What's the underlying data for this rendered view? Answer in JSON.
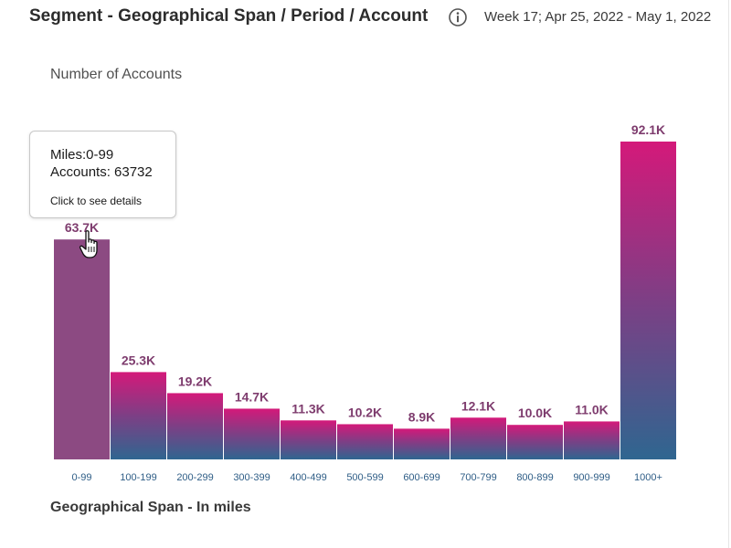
{
  "header": {
    "title": "Segment - Geographical Span / Period / Account",
    "period": "Week 17; Apr 25, 2022 - May 1, 2022",
    "info_icon": "info-icon"
  },
  "tooltip": {
    "miles_line": "Miles:0-99",
    "accounts_line": "Accounts: 63732",
    "hint": "Click to see details"
  },
  "chart_data": {
    "type": "bar",
    "ylabel": "Number of Accounts",
    "xlabel": "Geographical Span - In miles",
    "categories": [
      "0-99",
      "100-199",
      "200-299",
      "300-399",
      "400-499",
      "500-599",
      "600-699",
      "700-799",
      "800-899",
      "900-999",
      "1000+"
    ],
    "values": [
      63732,
      25300,
      19200,
      14700,
      11300,
      10200,
      8900,
      12100,
      10000,
      11000,
      92100
    ],
    "data_labels": [
      "63.7K",
      "25.3K",
      "19.2K",
      "14.7K",
      "11.3K",
      "10.2K",
      "8.9K",
      "12.1K",
      "10.0K",
      "11.0K",
      "92.1K"
    ],
    "ylim": [
      0,
      92100
    ],
    "grid": false,
    "legend": "none",
    "highlighted_category": "0-99",
    "colors": {
      "highlight": "#8c4a82",
      "gradient_top": "#d4197a",
      "gradient_mid": "#7d3f85",
      "gradient_bottom": "#2f6690",
      "data_label": "#7e3c6e",
      "tick_label": "#2e5d86"
    }
  }
}
